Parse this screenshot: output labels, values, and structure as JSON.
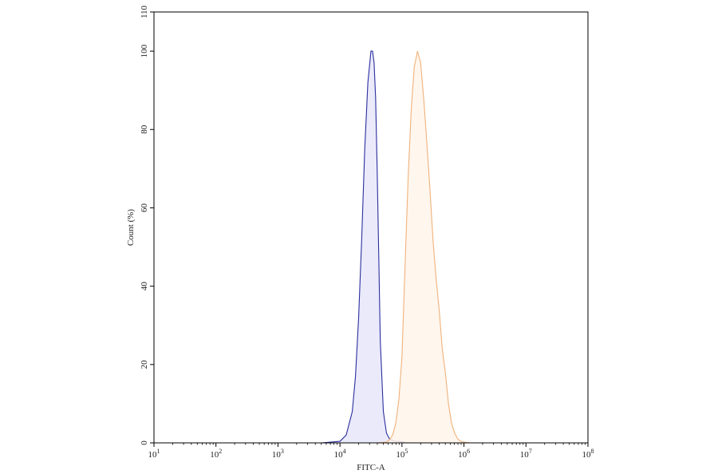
{
  "chart_data": {
    "type": "area",
    "title": "",
    "xlabel": "FITC-A",
    "ylabel": "Count (%)",
    "x_scale": "log10",
    "xlim": [
      10,
      100000000
    ],
    "ylim": [
      0,
      110
    ],
    "grid": false,
    "x_ticks": [
      {
        "base": "10",
        "exp": "1",
        "value": 10
      },
      {
        "base": "10",
        "exp": "2",
        "value": 100
      },
      {
        "base": "10",
        "exp": "3",
        "value": 1000
      },
      {
        "base": "10",
        "exp": "4",
        "value": 10000
      },
      {
        "base": "10",
        "exp": "5",
        "value": 100000
      },
      {
        "base": "10",
        "exp": "6",
        "value": 1000000
      },
      {
        "base": "10",
        "exp": "7",
        "value": 10000000
      },
      {
        "base": "10",
        "exp": "8",
        "value": 100000000
      }
    ],
    "y_ticks": [
      {
        "label": "0",
        "value": 0
      },
      {
        "label": "20",
        "value": 20
      },
      {
        "label": "40",
        "value": 40
      },
      {
        "label": "60",
        "value": 60
      },
      {
        "label": "80",
        "value": 80
      },
      {
        "label": "100",
        "value": 100
      },
      {
        "label": "110",
        "value": 110
      }
    ],
    "series": [
      {
        "line_color": "#2b2e9e",
        "fill_color": "#e6e6fa",
        "x": [
          5000,
          10000,
          12600,
          15800,
          17800,
          20000,
          22400,
          25100,
          28200,
          31600,
          33500,
          35500,
          37600,
          39800,
          42200,
          44700,
          50100,
          56200,
          63100,
          70800,
          79400,
          89100,
          100000,
          112000,
          126000
        ],
        "y": [
          0,
          0.4,
          2,
          8,
          17,
          32,
          52,
          75,
          92,
          100,
          100,
          97,
          88,
          70,
          48,
          26,
          8,
          2.5,
          1,
          0.6,
          0.4,
          0.4,
          0.3,
          0.1,
          0
        ]
      },
      {
        "line_color": "#f0b27a",
        "fill_color": "#fff5eb",
        "x": [
          40000,
          56200,
          63100,
          70800,
          79400,
          89100,
          100000,
          112000,
          126000,
          141000,
          158000,
          178000,
          200000,
          224000,
          251000,
          282000,
          316000,
          355000,
          398000,
          447000,
          501000,
          562000,
          631000,
          708000,
          794000,
          891000,
          1000000,
          1120000,
          1260000
        ],
        "y": [
          0,
          0.2,
          0.8,
          2,
          5,
          11,
          22,
          45,
          68,
          85,
          96,
          100,
          97,
          88,
          77,
          65,
          52,
          42,
          34,
          24,
          18,
          10,
          5,
          2.5,
          1,
          0.4,
          0.2,
          0.1,
          0
        ]
      }
    ]
  }
}
